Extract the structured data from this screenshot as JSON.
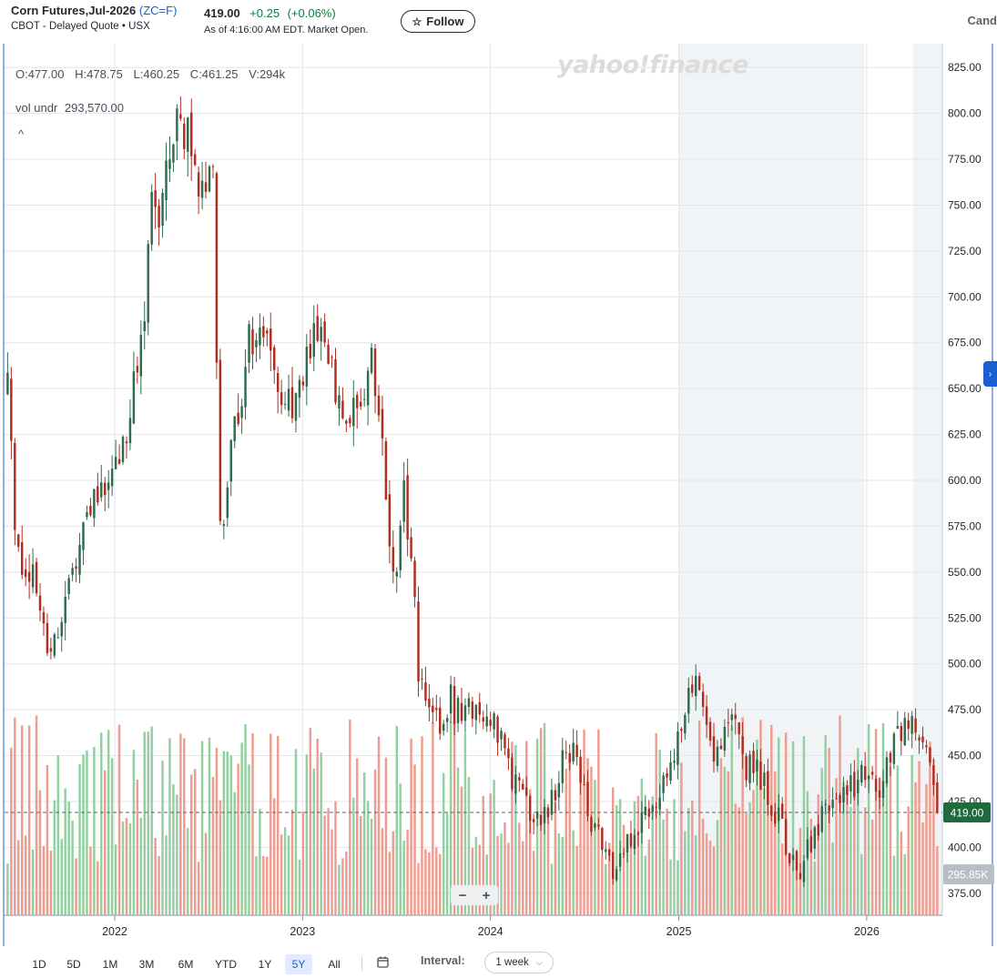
{
  "header": {
    "name": "Corn Futures,Jul-2026",
    "symbol": "(ZC=F)",
    "exchange_line": "CBOT - Delayed Quote • USX",
    "price": "419.00",
    "change": "+0.25",
    "change_pct": "(+0.06%)",
    "as_of": "As of 4:16:00 AM EDT. Market Open.",
    "follow_label": "Follow",
    "chart_type_label": "Cand"
  },
  "legend": {
    "open": "O:477.00",
    "high": "H:478.75",
    "low": "L:460.25",
    "close": "C:461.25",
    "volume": "V:294k",
    "vol_label": "vol undr",
    "vol_value": "293,570.00",
    "collapse_glyph": "^"
  },
  "watermark": "yahoo!finance",
  "zoom": {
    "minus": "−",
    "plus": "+"
  },
  "current_price_tag": "419.00",
  "current_volume_tag": "295.85K",
  "footer": {
    "ranges": [
      "1D",
      "5D",
      "1M",
      "3M",
      "6M",
      "YTD",
      "1Y",
      "5Y",
      "All"
    ],
    "active_range": "5Y",
    "interval_label": "Interval:",
    "interval_value": "1 week"
  },
  "colors": {
    "up": "#2e6b4f",
    "down": "#b12d1f",
    "vol_up": "#93cfa0",
    "vol_down": "#ee9c8f",
    "accent": "#1a5fd2",
    "price_tag": "#1f6a3f",
    "shade": "#f1f4f7"
  },
  "chart_data": {
    "type": "candlestick",
    "interval": "1 week",
    "y_axis": {
      "ticks": [
        825,
        800,
        775,
        750,
        725,
        700,
        675,
        650,
        625,
        600,
        575,
        550,
        525,
        500,
        475,
        450,
        425,
        400,
        375
      ],
      "tick_labels": [
        "825.00",
        "800.00",
        "775.00",
        "750.00",
        "725.00",
        "700.00",
        "675.00",
        "650.00",
        "625.00",
        "600.00",
        "575.00",
        "550.00",
        "525.00",
        "500.00",
        "475.00",
        "450.00",
        "425.00",
        "400.00",
        "375.00"
      ],
      "range": [
        363,
        838
      ]
    },
    "x_axis": {
      "labels": [
        "2022",
        "2023",
        "2024",
        "2025",
        "2026"
      ],
      "range_start": "2021-06",
      "range_end": "2026-05"
    },
    "shaded_ranges": [
      [
        "2025-01",
        "2025-12"
      ],
      [
        "2026-04",
        "2026-05"
      ]
    ],
    "last_price": 419.0,
    "price_path": [
      [
        "2021-06-07",
        650
      ],
      [
        "2021-06-21",
        580
      ],
      [
        "2021-07-05",
        555
      ],
      [
        "2021-07-26",
        545
      ],
      [
        "2021-08-16",
        520
      ],
      [
        "2021-08-30",
        510
      ],
      [
        "2021-09-20",
        525
      ],
      [
        "2021-10-18",
        560
      ],
      [
        "2021-11-15",
        585
      ],
      [
        "2021-12-06",
        595
      ],
      [
        "2021-12-27",
        600
      ],
      [
        "2022-01-24",
        630
      ],
      [
        "2022-02-14",
        655
      ],
      [
        "2022-02-28",
        700
      ],
      [
        "2022-03-14",
        750
      ],
      [
        "2022-04-04",
        745
      ],
      [
        "2022-04-25",
        790
      ],
      [
        "2022-05-09",
        800
      ],
      [
        "2022-05-30",
        780
      ],
      [
        "2022-06-13",
        770
      ],
      [
        "2022-06-27",
        760
      ],
      [
        "2022-07-11",
        770
      ],
      [
        "2022-07-25",
        575
      ],
      [
        "2022-08-15",
        610
      ],
      [
        "2022-08-29",
        640
      ],
      [
        "2022-09-19",
        675
      ],
      [
        "2022-10-10",
        685
      ],
      [
        "2022-10-31",
        675
      ],
      [
        "2022-11-21",
        650
      ],
      [
        "2022-12-12",
        640
      ],
      [
        "2023-01-09",
        660
      ],
      [
        "2023-01-30",
        680
      ],
      [
        "2023-02-20",
        675
      ],
      [
        "2023-03-13",
        640
      ],
      [
        "2023-04-03",
        630
      ],
      [
        "2023-04-24",
        640
      ],
      [
        "2023-05-15",
        660
      ],
      [
        "2023-06-05",
        630
      ],
      [
        "2023-06-19",
        560
      ],
      [
        "2023-07-03",
        550
      ],
      [
        "2023-07-17",
        590
      ],
      [
        "2023-07-31",
        560
      ],
      [
        "2023-08-14",
        495
      ],
      [
        "2023-09-04",
        470
      ],
      [
        "2023-09-25",
        465
      ],
      [
        "2023-10-16",
        480
      ],
      [
        "2023-11-06",
        470
      ],
      [
        "2023-11-27",
        475
      ],
      [
        "2023-12-18",
        478
      ],
      [
        "2024-01-15",
        460
      ],
      [
        "2024-02-05",
        445
      ],
      [
        "2024-02-26",
        430
      ],
      [
        "2024-03-18",
        422
      ],
      [
        "2024-04-08",
        412
      ],
      [
        "2024-04-29",
        428
      ],
      [
        "2024-05-20",
        445
      ],
      [
        "2024-06-10",
        460
      ],
      [
        "2024-06-24",
        440
      ],
      [
        "2024-07-15",
        410
      ],
      [
        "2024-08-05",
        400
      ],
      [
        "2024-08-26",
        385
      ],
      [
        "2024-09-16",
        395
      ],
      [
        "2024-10-07",
        410
      ],
      [
        "2024-10-28",
        420
      ],
      [
        "2024-11-18",
        430
      ],
      [
        "2024-12-09",
        440
      ],
      [
        "2024-12-30",
        455
      ],
      [
        "2025-01-20",
        480
      ],
      [
        "2025-02-10",
        495
      ],
      [
        "2025-02-24",
        470
      ],
      [
        "2025-03-10",
        455
      ],
      [
        "2025-03-31",
        465
      ],
      [
        "2025-04-21",
        470
      ],
      [
        "2025-05-12",
        445
      ],
      [
        "2025-06-02",
        440
      ],
      [
        "2025-06-23",
        430
      ],
      [
        "2025-07-14",
        415
      ],
      [
        "2025-08-04",
        395
      ],
      [
        "2025-08-25",
        390
      ],
      [
        "2025-09-15",
        400
      ],
      [
        "2025-10-06",
        415
      ],
      [
        "2025-10-27",
        425
      ],
      [
        "2025-11-17",
        430
      ],
      [
        "2025-12-08",
        435
      ],
      [
        "2025-12-29",
        440
      ],
      [
        "2026-01-19",
        430
      ],
      [
        "2026-02-09",
        445
      ],
      [
        "2026-03-02",
        460
      ],
      [
        "2026-03-23",
        470
      ],
      [
        "2026-04-13",
        460
      ],
      [
        "2026-05-04",
        440
      ],
      [
        "2026-05-18",
        419
      ]
    ]
  }
}
